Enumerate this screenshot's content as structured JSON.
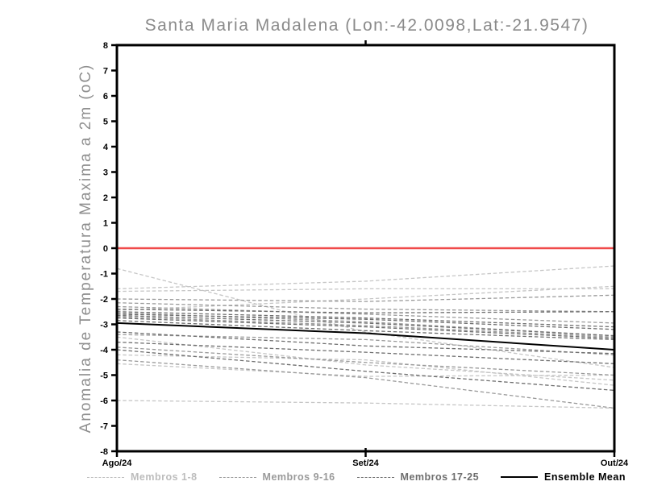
{
  "chart_data": {
    "type": "line",
    "title": "Santa Maria Madalena (Lon:-42.0098,Lat:-21.9547)",
    "ylabel": "Anomalia de Temperatura Maxima a 2m (oC)",
    "xlabel": "",
    "x_categories": [
      "Ago/24",
      "Set/24",
      "Out/24"
    ],
    "ylim": [
      -8,
      8
    ],
    "y_tick_step": 1,
    "grid": false,
    "legend_position": "bottom",
    "frame_color": "#000000",
    "zero_line": {
      "value": 0,
      "color": "#f04a4a"
    },
    "series_groups": [
      {
        "name": "Membros 1-8",
        "color": "#c6c6c6",
        "line_style": "dashed",
        "members": [
          [
            -0.8,
            -3.3,
            -4.7
          ],
          [
            -1.6,
            -1.3,
            -0.7
          ],
          [
            -1.7,
            -1.6,
            -1.6
          ],
          [
            -2.45,
            -2.0,
            -1.5
          ],
          [
            -3.5,
            -4.6,
            -5.2
          ],
          [
            -4.2,
            -4.4,
            -5.4
          ],
          [
            -4.55,
            -5.05,
            -5.0
          ],
          [
            -6.0,
            -6.1,
            -6.3
          ]
        ]
      },
      {
        "name": "Membros 9-16",
        "color": "#9a9a9a",
        "line_style": "dashed",
        "members": [
          [
            -2.0,
            -2.1,
            -1.85
          ],
          [
            -2.15,
            -2.4,
            -2.5
          ],
          [
            -2.3,
            -2.6,
            -2.95
          ],
          [
            -2.55,
            -2.9,
            -3.45
          ],
          [
            -2.7,
            -3.05,
            -3.5
          ],
          [
            -3.4,
            -3.6,
            -4.2
          ],
          [
            -3.9,
            -4.5,
            -5.0
          ],
          [
            -4.4,
            -5.1,
            -6.3
          ]
        ]
      },
      {
        "name": "Membros 17-25",
        "color": "#6e6e6e",
        "line_style": "dashed",
        "members": [
          [
            -2.4,
            -2.55,
            -2.5
          ],
          [
            -2.5,
            -2.75,
            -3.1
          ],
          [
            -2.6,
            -2.8,
            -3.2
          ],
          [
            -2.65,
            -2.95,
            -3.45
          ],
          [
            -2.75,
            -3.1,
            -3.55
          ],
          [
            -2.85,
            -3.25,
            -3.6
          ],
          [
            -3.3,
            -3.85,
            -4.15
          ],
          [
            -3.7,
            -4.1,
            -4.55
          ],
          [
            -4.0,
            -4.85,
            -5.6
          ]
        ]
      }
    ],
    "ensemble_mean": {
      "name": "Ensemble Mean",
      "color": "#000000",
      "line_style": "solid",
      "values": [
        -2.95,
        -3.35,
        -4.0
      ]
    }
  },
  "legend": {
    "items": [
      {
        "label": "Membros 1-8",
        "color": "#bdbdbd",
        "line_style": "dashed"
      },
      {
        "label": "Membros 9-16",
        "color": "#9a9a9a",
        "line_style": "dashed"
      },
      {
        "label": "Membros 17-25",
        "color": "#6e6e6e",
        "line_style": "dashed"
      },
      {
        "label": "Ensemble Mean",
        "color": "#000000",
        "line_style": "solid"
      }
    ]
  }
}
